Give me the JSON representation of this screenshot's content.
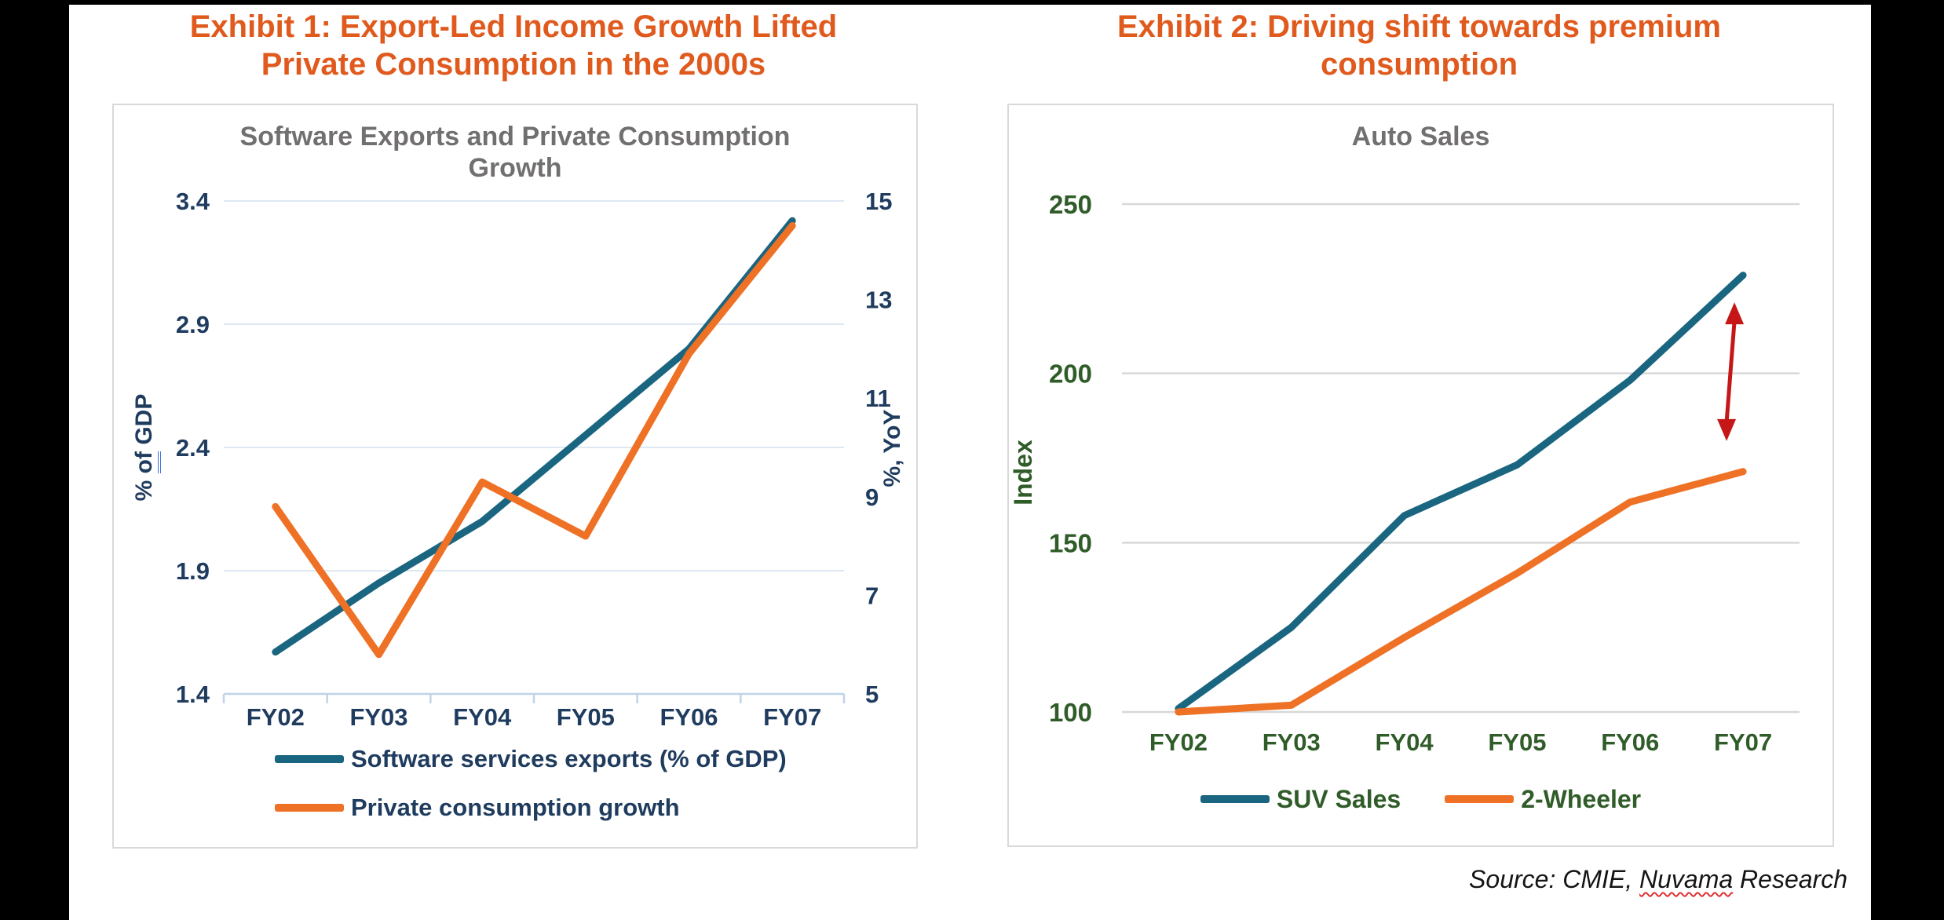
{
  "frame": {
    "bar_color": "#000000"
  },
  "exhibit1": {
    "title_lines": [
      "Exhibit 1: Export-Led Income Growth Lifted",
      "Private Consumption in the 2000s"
    ],
    "title_color": "#E05A1E"
  },
  "exhibit2": {
    "title_lines": [
      "Exhibit 2: Driving shift towards premium",
      "consumption"
    ],
    "title_color": "#E05A1E"
  },
  "source_note": {
    "prefix": "Source: CMIE, ",
    "flagged_word": "Nuvama",
    "suffix": " Research"
  },
  "chart_data": [
    {
      "id": "software-exports-chart",
      "type": "line",
      "title_lines": [
        "Software Exports and Private Consumption",
        "Growth"
      ],
      "title": "Software Exports and Private Consumption Growth",
      "categories": [
        "FY02",
        "FY03",
        "FY04",
        "FY05",
        "FY06",
        "FY07"
      ],
      "grid": "horizontal",
      "gridline_color": "#DDE8F3",
      "axisline_color": "#BFD4E8",
      "tick_label_color": "#1F3C5F",
      "y_left": {
        "label_parts": {
          "pre": "% ",
          "underlined": "of",
          "post": " GDP"
        },
        "label": "% of GDP",
        "ticks": [
          3.4,
          2.9,
          2.4,
          1.9,
          1.4
        ],
        "min": 1.4,
        "max": 3.4
      },
      "y_right": {
        "label": "%, YoY",
        "ticks": [
          15,
          13,
          11,
          9,
          7,
          5
        ],
        "min": 5,
        "max": 15
      },
      "series": [
        {
          "name": "Software services exports (% of GDP)",
          "axis": "left",
          "color": "#1A6580",
          "values": [
            1.57,
            1.85,
            2.1,
            2.45,
            2.8,
            3.32
          ]
        },
        {
          "name": "Private consumption growth",
          "axis": "right",
          "color": "#EE7125",
          "values": [
            8.8,
            5.8,
            9.3,
            8.2,
            11.9,
            14.5
          ]
        }
      ],
      "legend_position": "bottom-left"
    },
    {
      "id": "auto-sales-chart",
      "type": "line",
      "title": "Auto Sales",
      "categories": [
        "FY02",
        "FY03",
        "FY04",
        "FY05",
        "FY06",
        "FY07"
      ],
      "grid": "horizontal",
      "gridline_color": "#D8D8D8",
      "tick_label_color": "#2F5C28",
      "y": {
        "label": "Index",
        "ticks": [
          250,
          200,
          150,
          100
        ],
        "min": 100,
        "max": 250
      },
      "series": [
        {
          "name": "SUV Sales",
          "color": "#1A6580",
          "values": [
            101,
            125,
            158,
            173,
            198,
            229
          ]
        },
        {
          "name": "2-Wheeler",
          "color": "#EE7125",
          "values": [
            100,
            102,
            122,
            141,
            162,
            171
          ]
        }
      ],
      "annotation": {
        "type": "double-arrow",
        "color": "#C51718",
        "category_index": 5,
        "value_from": 180,
        "value_to": 221
      },
      "legend_position": "bottom-center"
    }
  ]
}
